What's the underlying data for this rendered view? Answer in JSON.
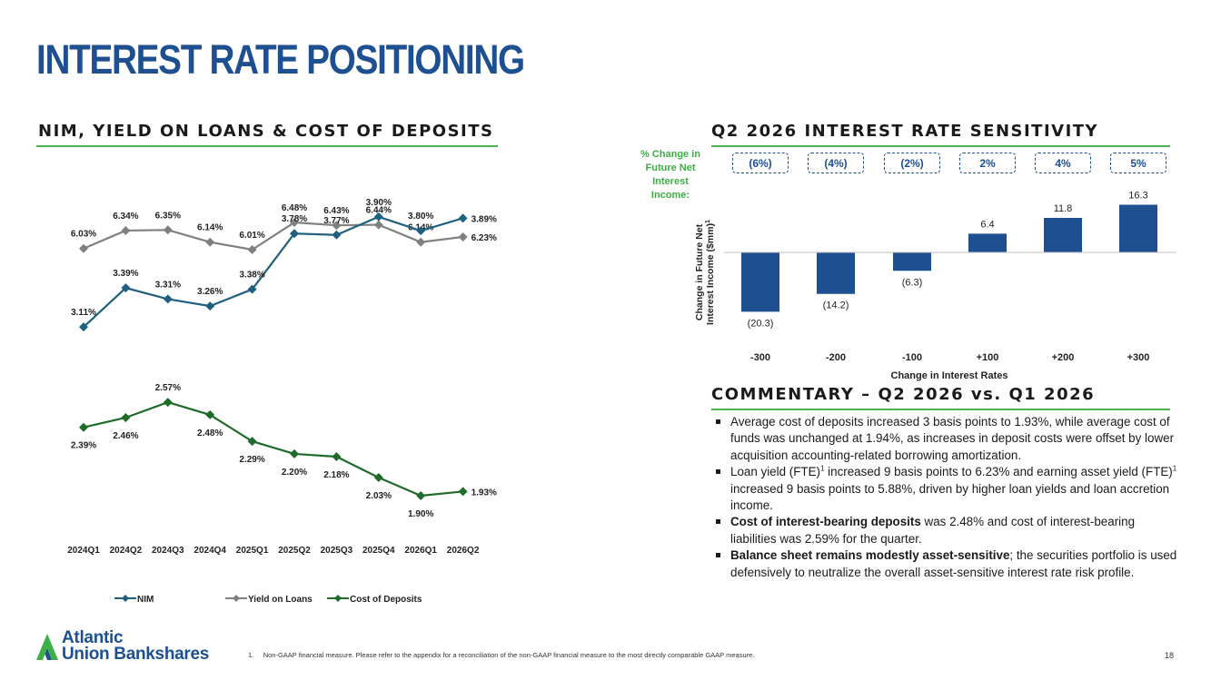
{
  "page": {
    "title": "INTEREST RATE POSITIONING",
    "footnote_num": "1.",
    "footnote": "Non-GAAP financial measure. Please refer to the appendix for a reconciliation of the non-GAAP financial measure to the most directly comparable GAAP measure.",
    "page_number": "18",
    "logo_line1": "Atlantic",
    "logo_line2": "Union Bankshares",
    "colors": {
      "brand_blue": "#1d4f91",
      "accent_green": "#4caf50"
    }
  },
  "left_section": {
    "title": "NIM, YIELD ON LOANS & COST OF DEPOSITS"
  },
  "right_section": {
    "title": "Q2 2026 INTEREST RATE SENSITIVITY",
    "pct_label": "% Change in Future Net Interest Income:"
  },
  "commentary": {
    "title": "COMMENTARY – Q2 2026 vs. Q1 2026",
    "b1": "Average cost of deposits increased 3 basis points to 1.93%, while average cost of funds was unchanged at 1.94%, as increases in deposit costs were offset by lower acquisition accounting-related borrowing amortization.",
    "b2_a": "Loan yield (FTE)",
    "b2_sup1": "1",
    "b2_b": " increased 9 basis points to 6.23% and earning asset yield (FTE)",
    "b2_sup2": "1",
    "b2_c": " increased 9 basis points to 5.88%, driven by higher loan yields and loan accretion income.",
    "b3_bold": "Cost of interest-bearing deposits",
    "b3_rest": " was 2.48% and cost of interest-bearing liabilities was 2.59% for the quarter.",
    "b4_bold": "Balance sheet remains modestly asset-sensitive",
    "b4_rest": "; the securities portfolio is used defensively to neutralize the overall asset-sensitive interest rate risk profile."
  },
  "chart_data": [
    {
      "type": "line",
      "categories": [
        "2024Q1",
        "2024Q2",
        "2024Q3",
        "2024Q4",
        "2025Q1",
        "2025Q2",
        "2025Q3",
        "2025Q4",
        "2026Q1",
        "2026Q2"
      ],
      "series": [
        {
          "name": "NIM",
          "color": "#1f5f7f",
          "values": [
            3.11,
            3.39,
            3.31,
            3.26,
            3.38,
            3.78,
            3.77,
            3.9,
            3.8,
            3.89
          ],
          "labels": [
            "3.11%",
            "3.39%",
            "3.31%",
            "3.26%",
            "3.38%",
            "3.78%",
            "3.77%",
            "3.90%",
            "3.80%",
            "3.89%"
          ]
        },
        {
          "name": "Yield on Loans",
          "color": "#808080",
          "values": [
            6.03,
            6.34,
            6.35,
            6.14,
            6.01,
            6.48,
            6.43,
            6.44,
            6.14,
            6.23
          ],
          "labels": [
            "6.03%",
            "6.34%",
            "6.35%",
            "6.14%",
            "6.01%",
            "6.48%",
            "6.43%",
            "6.44%",
            "6.14%",
            "6.23%"
          ]
        },
        {
          "name": "Cost of Deposits",
          "color": "#1e6b2a",
          "values": [
            2.39,
            2.46,
            2.57,
            2.48,
            2.29,
            2.2,
            2.18,
            2.03,
            1.9,
            1.93
          ],
          "labels": [
            "2.39%",
            "2.46%",
            "2.57%",
            "2.48%",
            "2.29%",
            "2.20%",
            "2.18%",
            "2.03%",
            "1.90%",
            "1.93%"
          ]
        }
      ],
      "legend_position": "bottom",
      "grid": false
    },
    {
      "type": "bar",
      "categories": [
        "-300",
        "-200",
        "-100",
        "+100",
        "+200",
        "+300"
      ],
      "values": [
        -20.3,
        -14.2,
        -6.3,
        6.4,
        11.8,
        16.3
      ],
      "labels": [
        "(20.3)",
        "(14.2)",
        "(6.3)",
        "6.4",
        "11.8",
        "16.3"
      ],
      "pct_change": [
        "(6%)",
        "(4%)",
        "(2%)",
        "2%",
        "4%",
        "5%"
      ],
      "xlabel": "Change in Interest Rates",
      "ylabel_line1": "Change in Future Net",
      "ylabel_line2": "Interest Income ($mm)",
      "ylabel_sup": "1",
      "color": "#1d4f91",
      "ylim": [
        -20.3,
        16.3
      ],
      "grid": false
    }
  ]
}
